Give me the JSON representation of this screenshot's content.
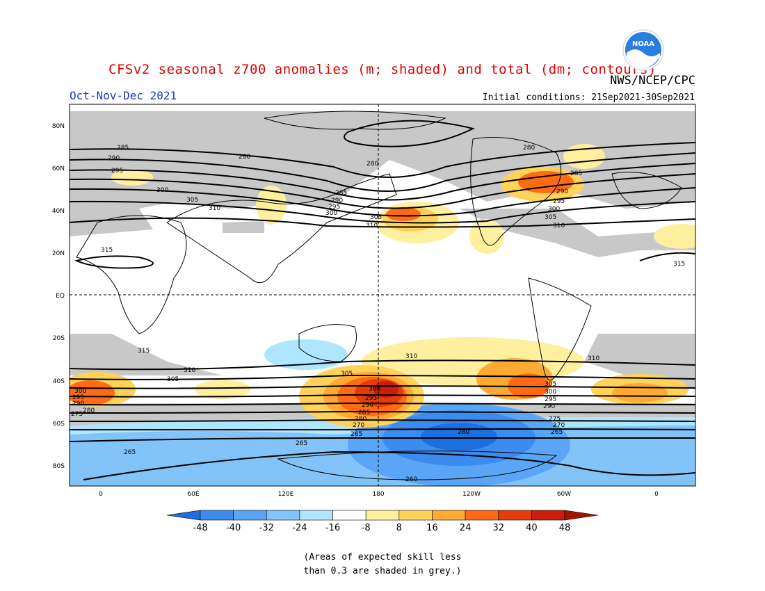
{
  "header": {
    "title": "CFSv2 seasonal z700 anomalies (m; shaded) and total (dm; contours)",
    "agency": "NWS/NCEP/CPC",
    "season": "Oct-Nov-Dec 2021",
    "initial_conditions": "Initial conditions: 21Sep2021-30Sep2021",
    "logo_text": "NOAA"
  },
  "map": {
    "lat_ticks": [
      "80N",
      "60N",
      "40N",
      "20N",
      "EQ",
      "20S",
      "40S",
      "60S",
      "80S"
    ],
    "lon_ticks": [
      "0",
      "60E",
      "120E",
      "180",
      "120W",
      "60W",
      "0"
    ],
    "contour_levels": [
      "260",
      "265",
      "270",
      "275",
      "280",
      "285",
      "290",
      "295",
      "300",
      "305",
      "310",
      "315"
    ]
  },
  "colorbar": {
    "labels": [
      "-48",
      "-40",
      "-32",
      "-24",
      "-16",
      "-8",
      "8",
      "16",
      "24",
      "32",
      "40",
      "48"
    ],
    "colors": [
      "#1e6ee0",
      "#3c8cf0",
      "#5aa5f5",
      "#82c3fa",
      "#aee6ff",
      "#ffffff",
      "#fff0a0",
      "#ffd25a",
      "#ffaa32",
      "#ff6a14",
      "#e63c0a",
      "#c81e0a",
      "#a01400"
    ]
  },
  "footnote": {
    "line1": "(Areas of expected skill less",
    "line2": "than 0.3 are shaded in grey.)"
  }
}
